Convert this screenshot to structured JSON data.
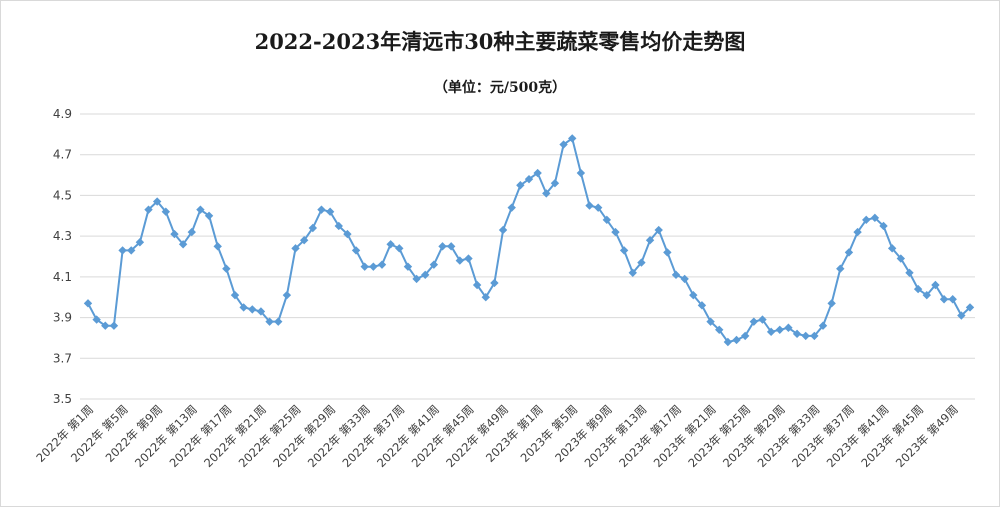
{
  "chart_data": {
    "type": "line",
    "title": "2022-2023年清远市30种主要蔬菜零售均价走势图",
    "subtitle": "（单位：元/500克）",
    "xlabel": "",
    "ylabel": "",
    "ylim": [
      3.5,
      4.9
    ],
    "yticks": [
      "3.5",
      "3.7",
      "3.9",
      "4.1",
      "4.3",
      "4.5",
      "4.7",
      "4.9"
    ],
    "grid": true,
    "legend": "none",
    "color": "#5b9bd5",
    "x_labels": [
      "2022年 第1周",
      "2022年 第5周",
      "2022年 第9周",
      "2022年 第13周",
      "2022年 第17周",
      "2022年 第21周",
      "2022年 第25周",
      "2022年 第29周",
      "2022年 第33周",
      "2022年 第37周",
      "2022年 第41周",
      "2022年 第45周",
      "2022年 第49周",
      "2023年 第1周",
      "2023年 第5周",
      "2023年 第9周",
      "2023年 第13周",
      "2023年 第17周",
      "2023年 第21周",
      "2023年 第25周",
      "2023年 第29周",
      "2023年 第33周",
      "2023年 第37周",
      "2023年 第41周",
      "2023年 第45周",
      "2023年 第49周"
    ],
    "series": [
      {
        "values": [
          3.97,
          3.89,
          3.86,
          3.86,
          4.23,
          4.23,
          4.27,
          4.43,
          4.47,
          4.42,
          4.31,
          4.26,
          4.32,
          4.43,
          4.4,
          4.25,
          4.14,
          4.01,
          3.95,
          3.94,
          3.93,
          3.88,
          3.88,
          4.01,
          4.24,
          4.28,
          4.34,
          4.43,
          4.42,
          4.35,
          4.31,
          4.23,
          4.15,
          4.15,
          4.16,
          4.26,
          4.24,
          4.15,
          4.09,
          4.11,
          4.16,
          4.25,
          4.25,
          4.18,
          4.19,
          4.06,
          4.0,
          4.07,
          4.33,
          4.44,
          4.55,
          4.58,
          4.61,
          4.51,
          4.56,
          4.75,
          4.78,
          4.61,
          4.45,
          4.44,
          4.38,
          4.32,
          4.23,
          4.12,
          4.17,
          4.28,
          4.33,
          4.22,
          4.11,
          4.09,
          4.01,
          3.96,
          3.88,
          3.84,
          3.78,
          3.79,
          3.81,
          3.88,
          3.89,
          3.83,
          3.84,
          3.85,
          3.82,
          3.81,
          3.81,
          3.86,
          3.97,
          4.14,
          4.22,
          4.32,
          4.38,
          4.39,
          4.35,
          4.24,
          4.19,
          4.12,
          4.04,
          4.01,
          4.06,
          3.99,
          3.99,
          3.91,
          3.95
        ]
      }
    ]
  }
}
